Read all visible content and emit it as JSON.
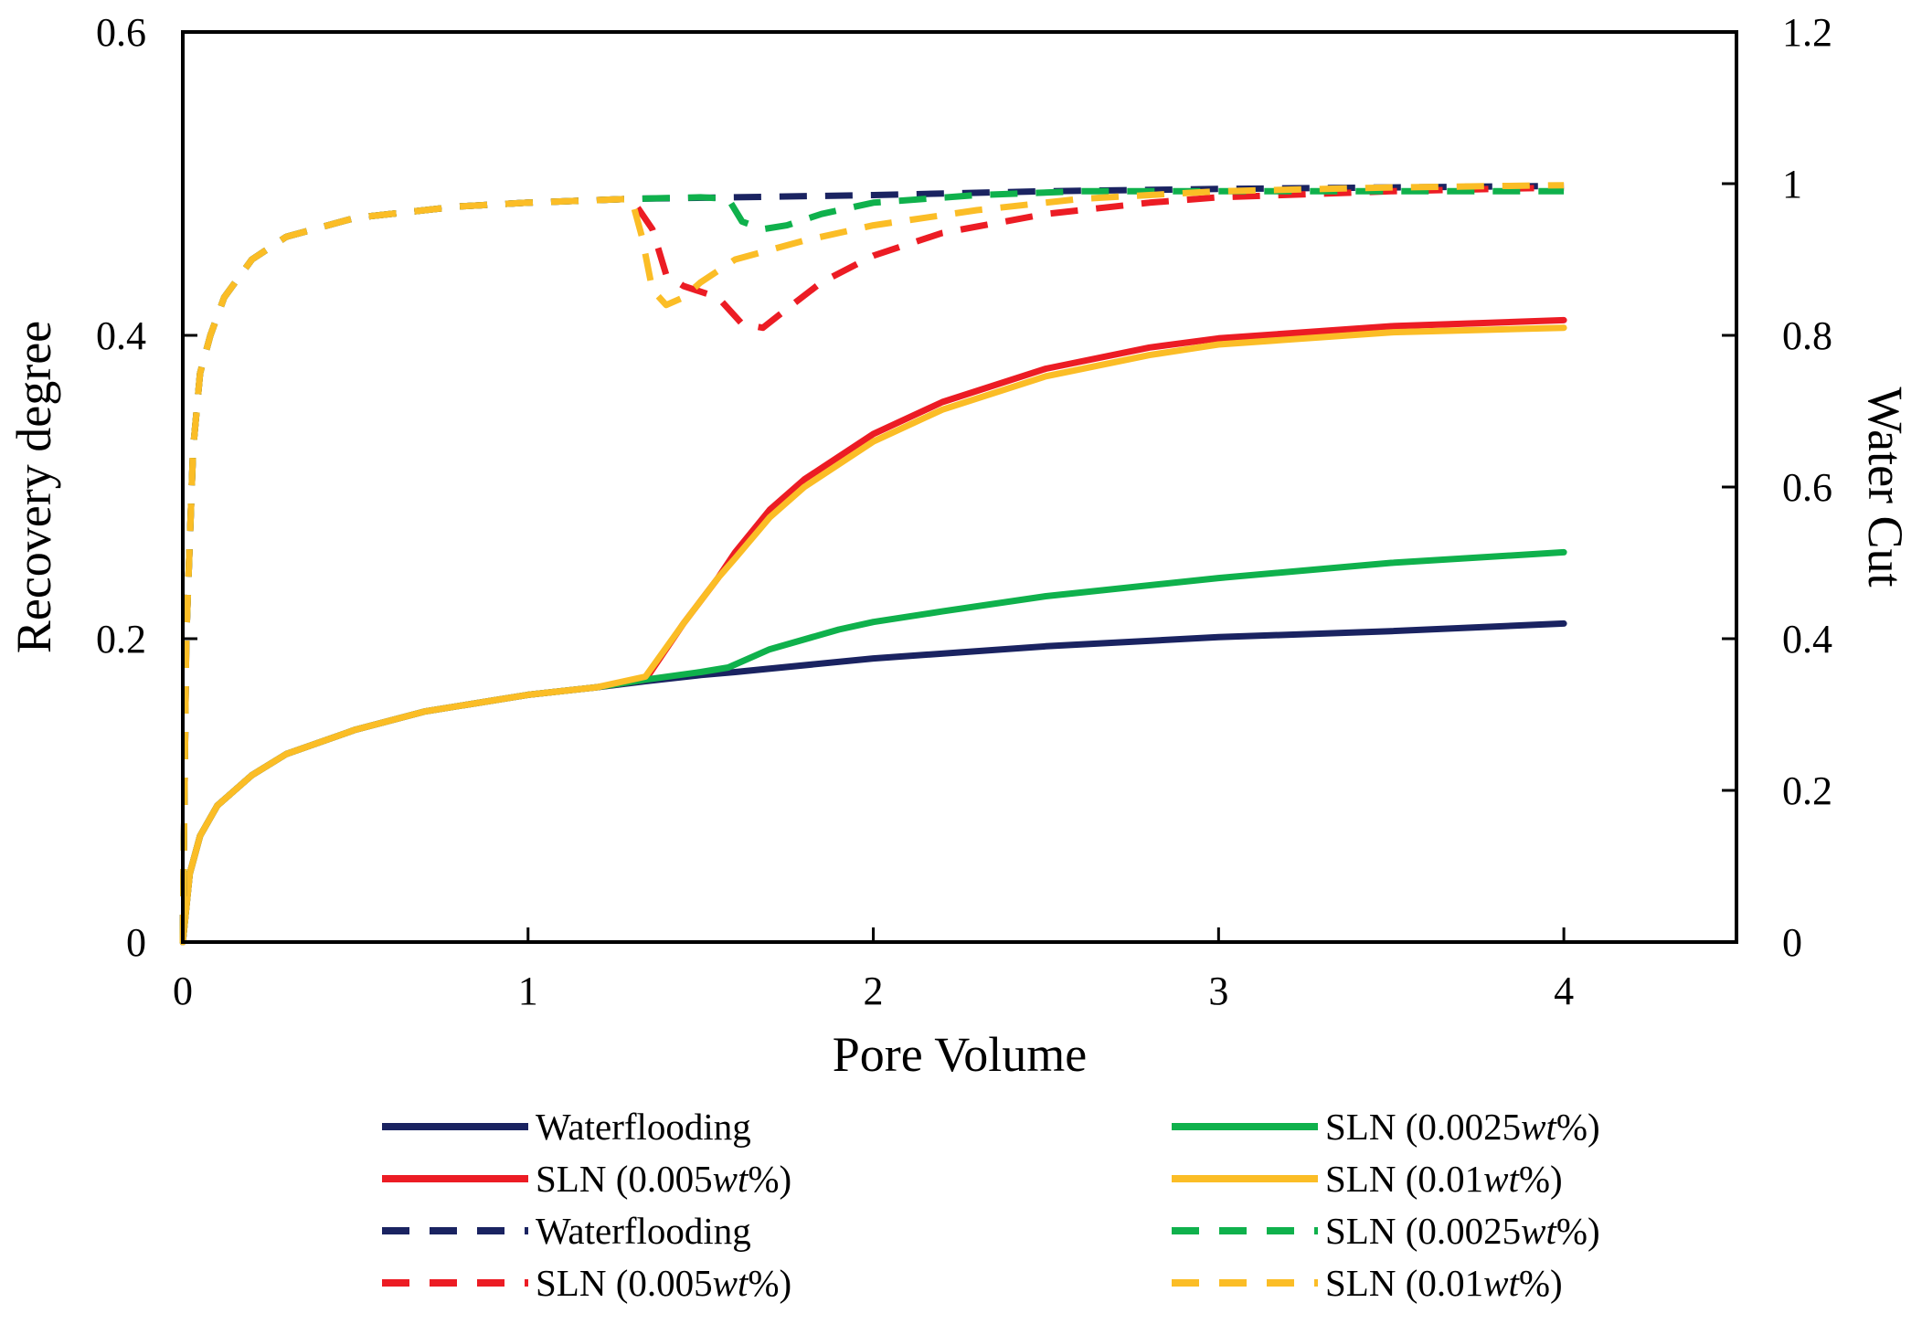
{
  "chart_data": {
    "type": "line",
    "xlabel": "Pore Volume",
    "ylabel_left": "Recovery degree",
    "ylabel_right": "Water Cut",
    "xlim": [
      0,
      4.5
    ],
    "ylim_left": [
      0,
      0.6
    ],
    "ylim_right": [
      0,
      1.2
    ],
    "x_ticks": [
      0,
      1,
      2,
      3,
      4
    ],
    "x_tick_labels": [
      "0",
      "1",
      "2",
      "3",
      "4"
    ],
    "y_left_ticks": [
      0,
      0.2,
      0.4,
      0.6
    ],
    "y_left_tick_labels": [
      "0",
      "0.2",
      "0.4",
      "0.6"
    ],
    "y_right_ticks": [
      0,
      0.2,
      0.4,
      0.6,
      0.8,
      1,
      1.2
    ],
    "y_right_tick_labels": [
      "0",
      "0.2",
      "0.4",
      "0.6",
      "0.8",
      "1",
      "1.2"
    ],
    "grid": false,
    "legend_placement": "bottom",
    "series": [
      {
        "name": "Waterflooding",
        "name_suffix": "",
        "axis": "left",
        "style": "solid",
        "color": "#1a2361",
        "x": [
          0,
          0.02,
          0.05,
          0.1,
          0.2,
          0.3,
          0.5,
          0.7,
          1.0,
          1.2,
          1.34,
          1.5,
          1.6,
          2.0,
          2.5,
          3.0,
          3.5,
          4.0
        ],
        "y": [
          0,
          0.045,
          0.07,
          0.09,
          0.11,
          0.124,
          0.14,
          0.152,
          0.163,
          0.168,
          0.172,
          0.176,
          0.178,
          0.187,
          0.195,
          0.201,
          0.205,
          0.21
        ]
      },
      {
        "name": "SLN (0.005",
        "name_suffix": "wt%)",
        "axis": "left",
        "style": "solid",
        "color": "#ec1c24",
        "x": [
          0,
          0.02,
          0.05,
          0.1,
          0.2,
          0.3,
          0.5,
          0.7,
          1.0,
          1.2,
          1.34,
          1.45,
          1.55,
          1.6,
          1.7,
          1.8,
          2.0,
          2.2,
          2.5,
          2.8,
          3.0,
          3.5,
          4.0
        ],
        "y": [
          0,
          0.045,
          0.07,
          0.09,
          0.11,
          0.124,
          0.14,
          0.152,
          0.163,
          0.168,
          0.173,
          0.21,
          0.24,
          0.257,
          0.285,
          0.305,
          0.335,
          0.356,
          0.378,
          0.392,
          0.398,
          0.406,
          0.41
        ]
      },
      {
        "name": "SLN (0.0025",
        "name_suffix": "wt%)",
        "axis": "left",
        "style": "solid",
        "color": "#0fb14c",
        "x": [
          0,
          0.02,
          0.05,
          0.1,
          0.2,
          0.3,
          0.5,
          0.7,
          1.0,
          1.2,
          1.34,
          1.5,
          1.58,
          1.7,
          1.9,
          2.0,
          2.2,
          2.5,
          3.0,
          3.5,
          4.0
        ],
        "y": [
          0,
          0.045,
          0.07,
          0.09,
          0.11,
          0.124,
          0.14,
          0.152,
          0.163,
          0.168,
          0.173,
          0.178,
          0.181,
          0.193,
          0.206,
          0.211,
          0.218,
          0.228,
          0.24,
          0.25,
          0.257
        ]
      },
      {
        "name": "SLN (0.01",
        "name_suffix": "wt%)",
        "axis": "left",
        "style": "solid",
        "color": "#fbbd26",
        "x": [
          0,
          0.02,
          0.05,
          0.1,
          0.2,
          0.3,
          0.5,
          0.7,
          1.0,
          1.2,
          1.34,
          1.45,
          1.55,
          1.6,
          1.7,
          1.8,
          2.0,
          2.2,
          2.5,
          2.8,
          3.0,
          3.5,
          4.0
        ],
        "y": [
          0,
          0.045,
          0.07,
          0.09,
          0.11,
          0.124,
          0.14,
          0.152,
          0.163,
          0.168,
          0.175,
          0.21,
          0.24,
          0.253,
          0.28,
          0.3,
          0.33,
          0.351,
          0.373,
          0.387,
          0.394,
          0.402,
          0.405
        ]
      },
      {
        "name": "Waterflooding",
        "name_suffix": "",
        "axis": "right",
        "style": "dashed",
        "color": "#1a2361",
        "x": [
          0,
          0.01,
          0.03,
          0.05,
          0.08,
          0.12,
          0.2,
          0.3,
          0.5,
          0.8,
          1.0,
          1.3,
          1.6,
          2.0,
          2.5,
          3.0,
          3.5,
          4.0
        ],
        "y": [
          0,
          0.4,
          0.65,
          0.75,
          0.8,
          0.85,
          0.9,
          0.93,
          0.955,
          0.97,
          0.975,
          0.98,
          0.982,
          0.985,
          0.99,
          0.993,
          0.995,
          0.997
        ]
      },
      {
        "name": "SLN (0.005",
        "name_suffix": "wt%)",
        "axis": "right",
        "style": "dashed",
        "color": "#ec1c24",
        "x": [
          0,
          0.01,
          0.03,
          0.05,
          0.08,
          0.12,
          0.2,
          0.3,
          0.5,
          0.8,
          1.0,
          1.3,
          1.36,
          1.4,
          1.45,
          1.55,
          1.62,
          1.68,
          1.75,
          1.85,
          2.0,
          2.2,
          2.5,
          2.8,
          3.0,
          3.5,
          4.0
        ],
        "y": [
          0,
          0.4,
          0.65,
          0.75,
          0.8,
          0.85,
          0.9,
          0.93,
          0.955,
          0.97,
          0.975,
          0.98,
          0.94,
          0.88,
          0.865,
          0.85,
          0.815,
          0.81,
          0.835,
          0.87,
          0.905,
          0.935,
          0.96,
          0.975,
          0.982,
          0.99,
          0.995
        ]
      },
      {
        "name": "SLN (0.0025",
        "name_suffix": "wt%)",
        "axis": "right",
        "style": "dashed",
        "color": "#0fb14c",
        "x": [
          0,
          0.01,
          0.03,
          0.05,
          0.08,
          0.12,
          0.2,
          0.3,
          0.5,
          0.8,
          1.0,
          1.3,
          1.5,
          1.58,
          1.62,
          1.68,
          1.75,
          1.85,
          2.0,
          2.3,
          2.6,
          3.0,
          3.5,
          4.0
        ],
        "y": [
          0,
          0.4,
          0.65,
          0.75,
          0.8,
          0.85,
          0.9,
          0.93,
          0.955,
          0.97,
          0.975,
          0.98,
          0.982,
          0.98,
          0.95,
          0.94,
          0.945,
          0.96,
          0.975,
          0.985,
          0.99,
          0.99,
          0.99,
          0.99
        ]
      },
      {
        "name": "SLN (0.01",
        "name_suffix": "wt%)",
        "axis": "right",
        "style": "dashed",
        "color": "#fbbd26",
        "x": [
          0,
          0.01,
          0.03,
          0.05,
          0.08,
          0.12,
          0.2,
          0.3,
          0.5,
          0.8,
          1.0,
          1.3,
          1.33,
          1.36,
          1.4,
          1.45,
          1.5,
          1.6,
          1.8,
          2.0,
          2.3,
          2.6,
          3.0,
          3.5,
          4.0
        ],
        "y": [
          0,
          0.4,
          0.65,
          0.75,
          0.8,
          0.85,
          0.9,
          0.93,
          0.955,
          0.97,
          0.975,
          0.98,
          0.93,
          0.86,
          0.84,
          0.85,
          0.87,
          0.9,
          0.925,
          0.945,
          0.965,
          0.98,
          0.99,
          0.995,
          0.998
        ]
      }
    ]
  }
}
